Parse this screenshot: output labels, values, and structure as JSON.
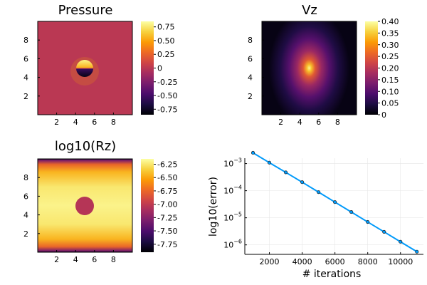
{
  "chart_data": [
    {
      "type": "heatmap",
      "title": "Pressure",
      "xticks": [
        "2",
        "4",
        "6",
        "8"
      ],
      "yticks": [
        "2",
        "4",
        "6",
        "8"
      ],
      "xlim": [
        0,
        10
      ],
      "ylim": [
        0,
        10
      ],
      "colormap": "inferno",
      "colorbar": {
        "ticks": [
          "0.75",
          "0.50",
          "0.25",
          "0",
          "-0.25",
          "-0.50",
          "-0.75"
        ],
        "range": [
          -0.85,
          0.85
        ]
      },
      "background_value": 0.0,
      "features": "circular inclusion centered at (5, 5): positive pressure on its top half, negative on its bottom half"
    },
    {
      "type": "heatmap",
      "title": "Vz",
      "xticks": [
        "2",
        "4",
        "6",
        "8"
      ],
      "yticks": [
        "2",
        "4",
        "6",
        "8"
      ],
      "xlim": [
        0,
        10
      ],
      "ylim": [
        0,
        10
      ],
      "colormap": "inferno",
      "colorbar": {
        "ticks": [
          "0.40",
          "0.35",
          "0.30",
          "0.25",
          "0.20",
          "0.15",
          "0.10",
          "0.05",
          "0"
        ],
        "range": [
          0,
          0.4
        ]
      },
      "peak_value": 0.4,
      "features": "peak at (5, 5) decaying outward, elongated vertically"
    },
    {
      "type": "heatmap",
      "title": "log10(Rz)",
      "xticks": [
        "2",
        "4",
        "6",
        "8"
      ],
      "yticks": [
        "2",
        "4",
        "6",
        "8"
      ],
      "xlim": [
        0,
        10
      ],
      "ylim": [
        0,
        10
      ],
      "colormap": "inferno",
      "colorbar": {
        "ticks": [
          "-6.25",
          "-6.50",
          "-6.75",
          "-7.00",
          "-7.25",
          "-7.50",
          "-7.75"
        ],
        "range": [
          -7.9,
          -6.15
        ]
      },
      "background_value": -6.2,
      "inclusion_value": -7.05,
      "features": "circular inclusion centered at (5, 5) with lower residual; values drop toward the top and bottom boundaries"
    },
    {
      "type": "line",
      "xlabel": "# iterations",
      "ylabel": "log10(error)",
      "xlim": [
        500,
        11400
      ],
      "ylim": [
        -6.35,
        -2.8
      ],
      "yscale": "log10",
      "xticks": [
        "2000",
        "4000",
        "6000",
        "8000",
        "10000"
      ],
      "yticks": [
        {
          "base": "10",
          "exp": "-3"
        },
        {
          "base": "10",
          "exp": "-4"
        },
        {
          "base": "10",
          "exp": "-5"
        },
        {
          "base": "10",
          "exp": "-6"
        }
      ],
      "grid": true,
      "series": [
        {
          "color": "#009AFA",
          "x": [
            1000,
            2000,
            3000,
            4000,
            5000,
            6000,
            7000,
            8000,
            9000,
            10000,
            11000
          ],
          "y": [
            0.0025,
            0.00108,
            0.000474,
            0.000206,
            8.85e-05,
            3.78e-05,
            1.63e-05,
            7e-06,
            3.02e-06,
            1.3e-06,
            5.6e-07
          ]
        }
      ]
    }
  ]
}
